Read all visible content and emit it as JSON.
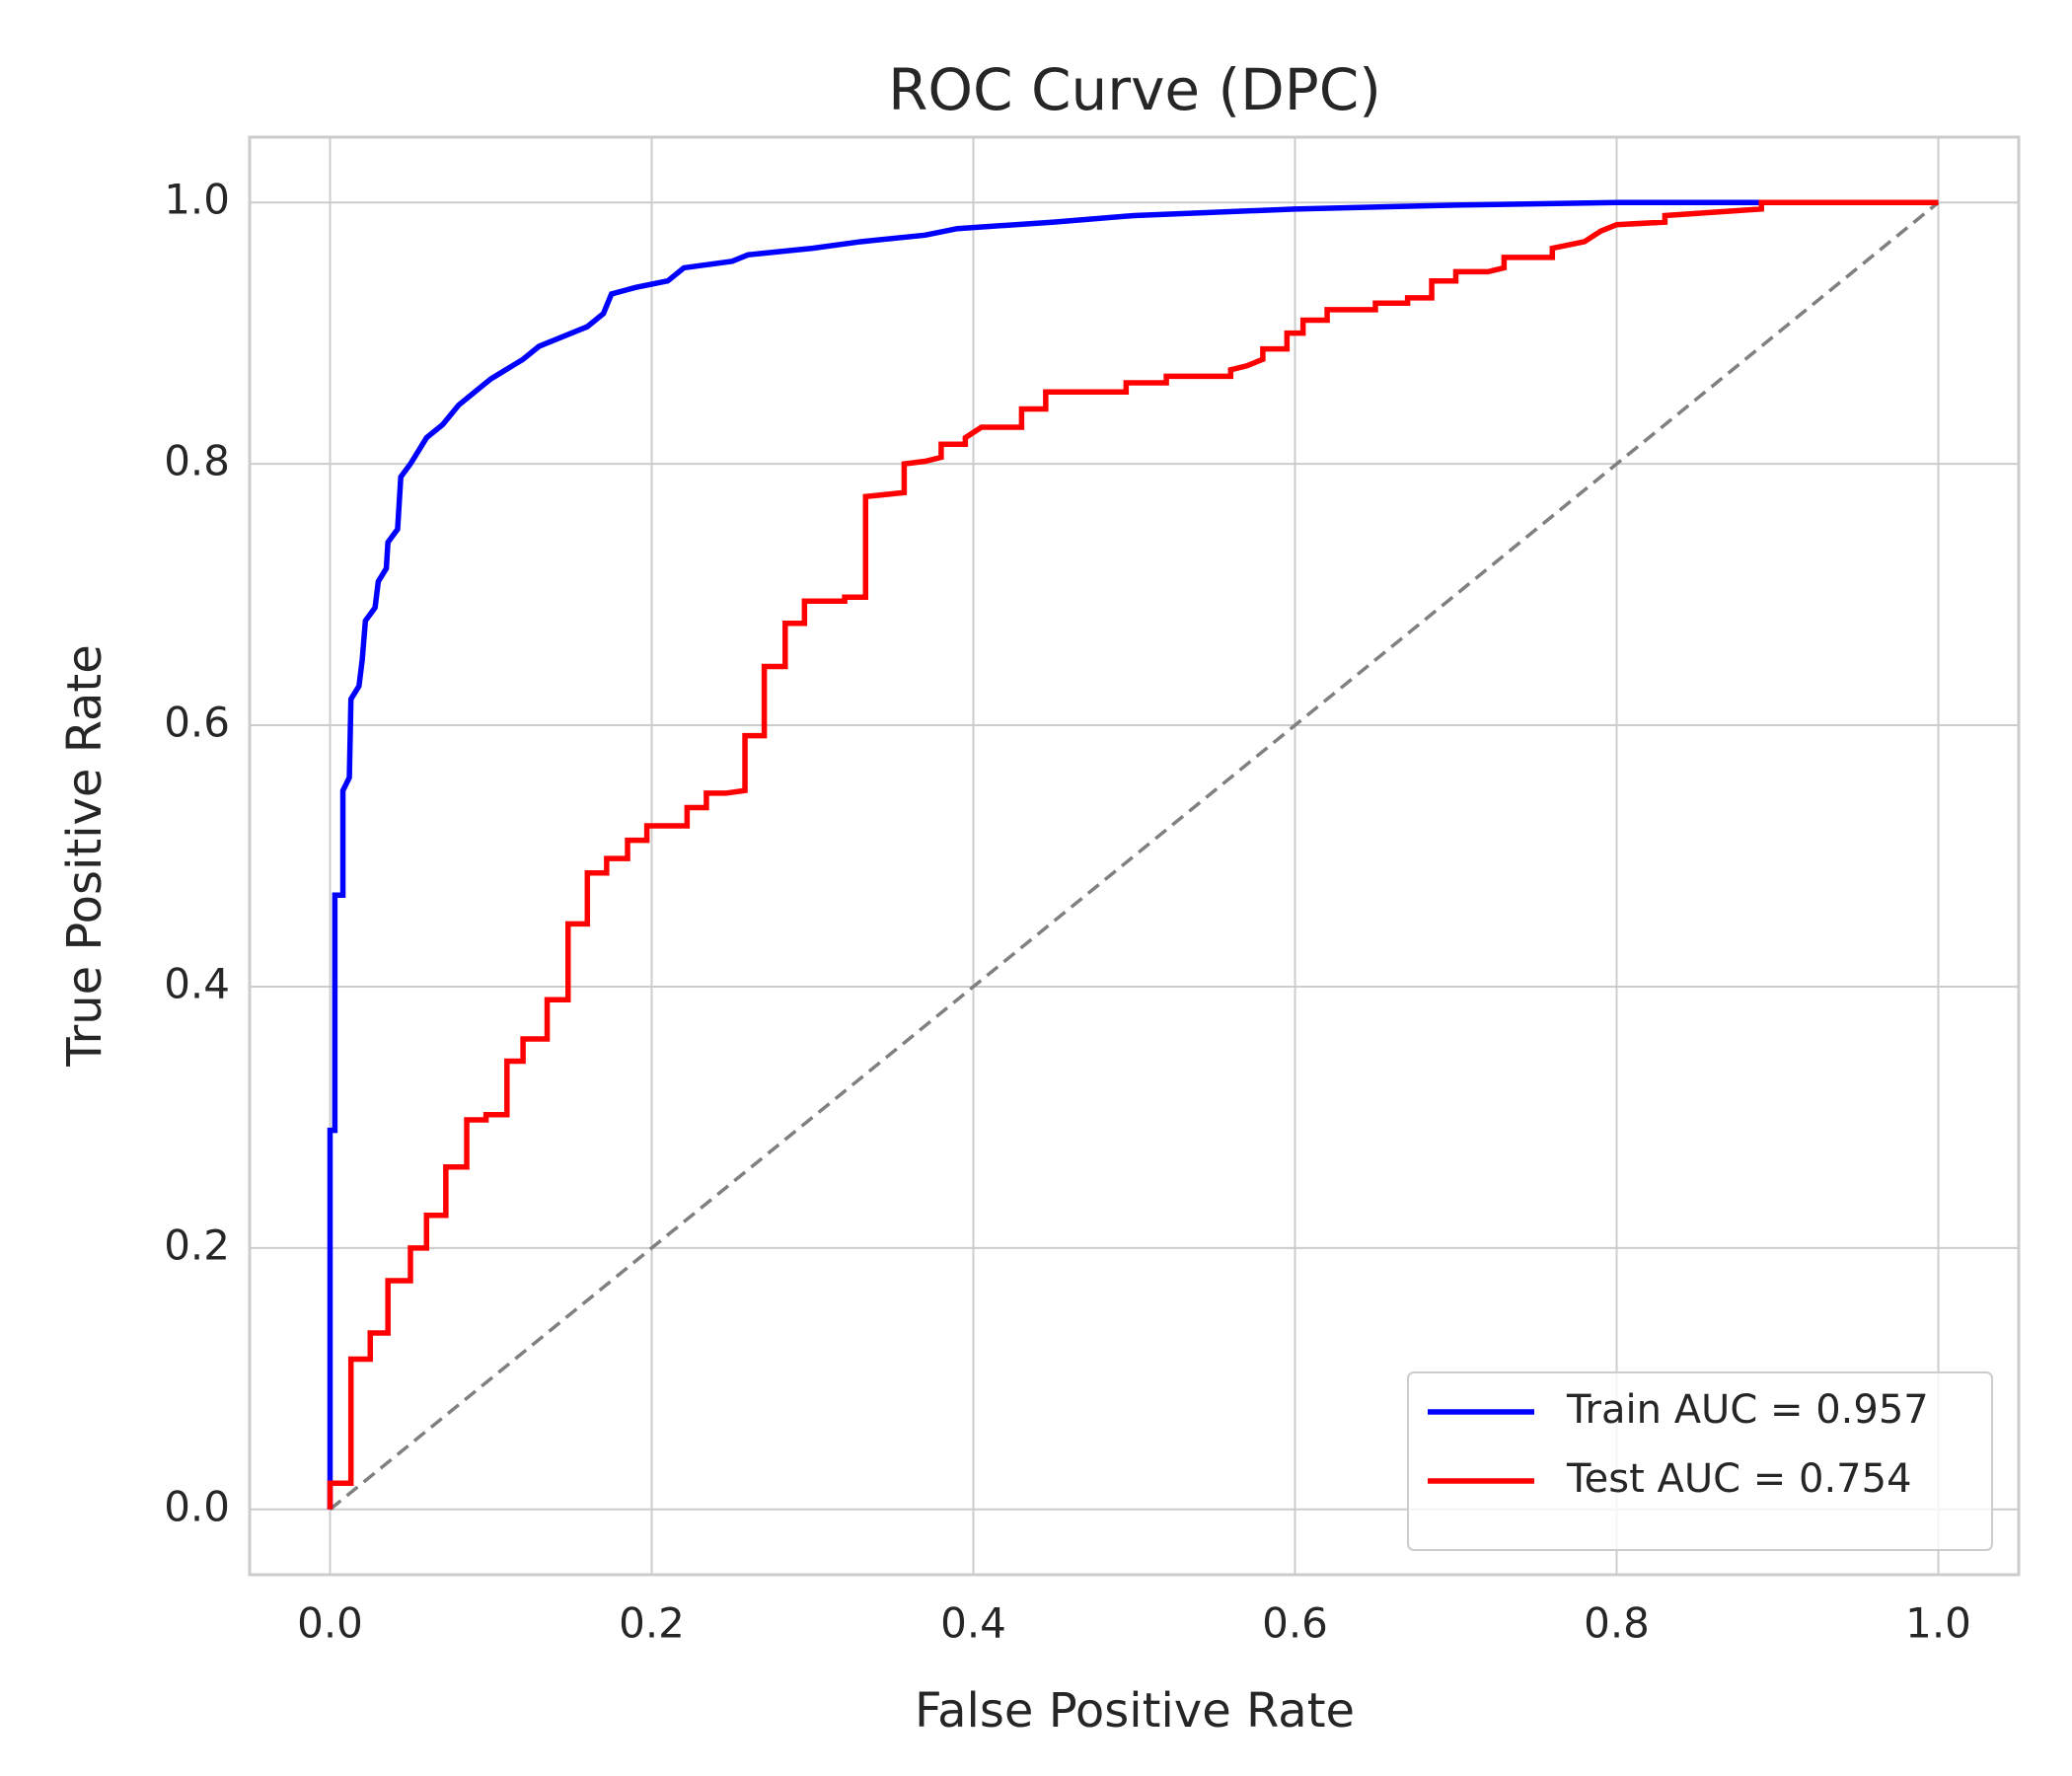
{
  "chart_data": {
    "type": "line",
    "title": "ROC Curve (DPC)",
    "x_label": "False Positive Rate",
    "y_label": "True Positive Rate",
    "xlim": [
      -0.05,
      1.05
    ],
    "ylim": [
      -0.05,
      1.05
    ],
    "xticks": [
      {
        "value": 0,
        "label": "0.0"
      },
      0.2,
      0.4,
      0.6,
      0.8,
      {
        "value": 1,
        "label": "1.0"
      }
    ],
    "yticks": [
      {
        "value": 0,
        "label": "0.0"
      },
      0.2,
      0.4,
      0.6,
      0.8,
      {
        "value": 1,
        "label": "1.0"
      }
    ],
    "grid": true,
    "legend_loc": "lower right",
    "series": [
      {
        "name": "Train AUC = 0.957",
        "color": "#0000ff",
        "x": [
          0,
          0,
          0.003,
          0.003,
          0.008,
          0.008,
          0.012,
          0.013,
          0.018,
          0.02,
          0.022,
          0.028,
          0.03,
          0.035,
          0.036,
          0.042,
          0.044,
          0.05,
          0.055,
          0.06,
          0.07,
          0.08,
          0.09,
          0.1,
          0.12,
          0.13,
          0.14,
          0.16,
          0.17,
          0.175,
          0.19,
          0.21,
          0.22,
          0.25,
          0.26,
          0.3,
          0.33,
          0.37,
          0.39,
          0.45,
          0.5,
          0.6,
          0.7,
          0.8,
          0.886,
          1
        ],
        "values": [
          0,
          0.29,
          0.29,
          0.47,
          0.47,
          0.55,
          0.56,
          0.62,
          0.63,
          0.65,
          0.68,
          0.69,
          0.71,
          0.72,
          0.74,
          0.75,
          0.79,
          0.8,
          0.81,
          0.82,
          0.83,
          0.845,
          0.855,
          0.865,
          0.88,
          0.89,
          0.895,
          0.905,
          0.915,
          0.93,
          0.935,
          0.94,
          0.95,
          0.955,
          0.96,
          0.965,
          0.97,
          0.975,
          0.98,
          0.985,
          0.99,
          0.995,
          0.998,
          1,
          1,
          1
        ]
      },
      {
        "name": "Test AUC = 0.754",
        "color": "#ff0000",
        "x": [
          0,
          0,
          0.013,
          0.013,
          0.025,
          0.025,
          0.036,
          0.036,
          0.05,
          0.05,
          0.06,
          0.06,
          0.072,
          0.072,
          0.085,
          0.085,
          0.097,
          0.097,
          0.11,
          0.11,
          0.12,
          0.12,
          0.135,
          0.135,
          0.148,
          0.148,
          0.16,
          0.16,
          0.172,
          0.172,
          0.185,
          0.185,
          0.197,
          0.197,
          0.222,
          0.222,
          0.234,
          0.234,
          0.246,
          0.258,
          0.258,
          0.27,
          0.27,
          0.283,
          0.283,
          0.295,
          0.295,
          0.32,
          0.32,
          0.333,
          0.333,
          0.357,
          0.357,
          0.37,
          0.38,
          0.38,
          0.395,
          0.395,
          0.405,
          0.43,
          0.43,
          0.445,
          0.445,
          0.495,
          0.495,
          0.52,
          0.52,
          0.56,
          0.56,
          0.57,
          0.58,
          0.58,
          0.595,
          0.595,
          0.605,
          0.605,
          0.62,
          0.62,
          0.65,
          0.65,
          0.67,
          0.67,
          0.685,
          0.685,
          0.7,
          0.7,
          0.72,
          0.73,
          0.73,
          0.76,
          0.76,
          0.78,
          0.79,
          0.8,
          0.83,
          0.83,
          0.89,
          0.89,
          1
        ],
        "values": [
          0,
          0.02,
          0.02,
          0.115,
          0.115,
          0.135,
          0.135,
          0.175,
          0.175,
          0.2,
          0.2,
          0.225,
          0.225,
          0.262,
          0.262,
          0.298,
          0.298,
          0.302,
          0.302,
          0.343,
          0.343,
          0.36,
          0.36,
          0.39,
          0.39,
          0.448,
          0.448,
          0.487,
          0.487,
          0.498,
          0.498,
          0.512,
          0.512,
          0.523,
          0.523,
          0.537,
          0.537,
          0.548,
          0.548,
          0.55,
          0.592,
          0.592,
          0.645,
          0.645,
          0.678,
          0.678,
          0.695,
          0.695,
          0.698,
          0.698,
          0.775,
          0.778,
          0.8,
          0.802,
          0.805,
          0.815,
          0.815,
          0.82,
          0.828,
          0.828,
          0.842,
          0.842,
          0.855,
          0.855,
          0.862,
          0.862,
          0.867,
          0.867,
          0.872,
          0.875,
          0.88,
          0.888,
          0.888,
          0.9,
          0.9,
          0.91,
          0.91,
          0.918,
          0.918,
          0.923,
          0.923,
          0.927,
          0.927,
          0.94,
          0.94,
          0.947,
          0.947,
          0.95,
          0.958,
          0.958,
          0.965,
          0.97,
          0.978,
          0.983,
          0.985,
          0.99,
          0.995,
          1,
          1
        ]
      }
    ],
    "diagonal": {
      "x": [
        0,
        1
      ],
      "values": [
        0,
        1
      ],
      "color": "#808080",
      "dashed": true
    }
  }
}
